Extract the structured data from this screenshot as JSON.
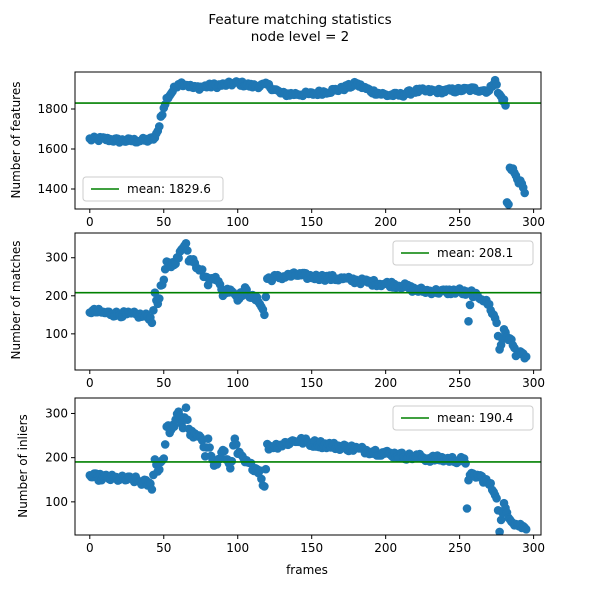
{
  "figure": {
    "title_line1": "Feature matching statistics",
    "title_line2": "node level = 2",
    "xlabel": "frames"
  },
  "colors": {
    "points": "#1f77b4",
    "mean_line": "#008000"
  },
  "chart_data": [
    {
      "type": "scatter",
      "ylabel": "Number of features",
      "xlim": [
        -10,
        305
      ],
      "ylim": [
        1300,
        1985
      ],
      "xticks": [
        0,
        50,
        100,
        150,
        200,
        250,
        300
      ],
      "yticks": [
        1400,
        1600,
        1800
      ],
      "mean": 1829.6,
      "legend": {
        "label": "mean: 1829.6",
        "position": "lower-left"
      },
      "anchors": [
        [
          0,
          1648
        ],
        [
          10,
          1650
        ],
        [
          20,
          1642
        ],
        [
          30,
          1642
        ],
        [
          40,
          1645
        ],
        [
          44,
          1655
        ],
        [
          46,
          1685
        ],
        [
          48,
          1760
        ],
        [
          50,
          1800
        ],
        [
          52,
          1850
        ],
        [
          55,
          1880
        ],
        [
          60,
          1930
        ],
        [
          65,
          1925
        ],
        [
          70,
          1905
        ],
        [
          80,
          1915
        ],
        [
          90,
          1920
        ],
        [
          100,
          1930
        ],
        [
          110,
          1915
        ],
        [
          120,
          1920
        ],
        [
          130,
          1875
        ],
        [
          150,
          1875
        ],
        [
          170,
          1900
        ],
        [
          180,
          1925
        ],
        [
          190,
          1890
        ],
        [
          200,
          1870
        ],
        [
          210,
          1870
        ],
        [
          220,
          1890
        ],
        [
          240,
          1890
        ],
        [
          260,
          1900
        ],
        [
          270,
          1890
        ],
        [
          274,
          1950
        ],
        [
          276,
          1880
        ],
        [
          280,
          1840
        ],
        [
          281,
          1820
        ],
        [
          282,
          1330
        ],
        [
          283,
          1320
        ],
        [
          284,
          1510
        ],
        [
          286,
          1500
        ],
        [
          288,
          1460
        ],
        [
          292,
          1420
        ],
        [
          294,
          1380
        ]
      ],
      "x": [],
      "y": []
    },
    {
      "type": "scatter",
      "ylabel": "Number of matches",
      "xlim": [
        -10,
        305
      ],
      "ylim": [
        5,
        365
      ],
      "xticks": [
        0,
        50,
        100,
        150,
        200,
        250,
        300
      ],
      "yticks": [
        100,
        200,
        300
      ],
      "mean": 208.1,
      "legend": {
        "label": "mean: 208.1",
        "position": "upper-right"
      },
      "anchors": [
        [
          0,
          160
        ],
        [
          10,
          155
        ],
        [
          20,
          152
        ],
        [
          30,
          150
        ],
        [
          40,
          145
        ],
        [
          42,
          135
        ],
        [
          44,
          200
        ],
        [
          46,
          180
        ],
        [
          48,
          220
        ],
        [
          50,
          240
        ],
        [
          52,
          285
        ],
        [
          55,
          280
        ],
        [
          60,
          300
        ],
        [
          63,
          330
        ],
        [
          65,
          345
        ],
        [
          67,
          290
        ],
        [
          70,
          300
        ],
        [
          72,
          280
        ],
        [
          75,
          270
        ],
        [
          78,
          250
        ],
        [
          80,
          235
        ],
        [
          85,
          255
        ],
        [
          90,
          205
        ],
        [
          95,
          220
        ],
        [
          100,
          195
        ],
        [
          105,
          215
        ],
        [
          110,
          195
        ],
        [
          115,
          185
        ],
        [
          118,
          150
        ],
        [
          120,
          245
        ],
        [
          130,
          250
        ],
        [
          140,
          255
        ],
        [
          150,
          250
        ],
        [
          170,
          245
        ],
        [
          190,
          235
        ],
        [
          210,
          228
        ],
        [
          220,
          215
        ],
        [
          240,
          210
        ],
        [
          250,
          213
        ],
        [
          255,
          205
        ],
        [
          256,
          130
        ],
        [
          258,
          210
        ],
        [
          260,
          200
        ],
        [
          265,
          195
        ],
        [
          270,
          175
        ],
        [
          275,
          130
        ],
        [
          277,
          60
        ],
        [
          280,
          105
        ],
        [
          285,
          80
        ],
        [
          288,
          50
        ],
        [
          292,
          45
        ],
        [
          295,
          40
        ]
      ],
      "x": [],
      "y": []
    },
    {
      "type": "scatter",
      "ylabel": "Number of inliers",
      "xlim": [
        -10,
        305
      ],
      "ylim": [
        25,
        335
      ],
      "xticks": [
        0,
        50,
        100,
        150,
        200,
        250,
        300
      ],
      "yticks": [
        100,
        200,
        300
      ],
      "mean": 190.4,
      "legend": {
        "label": "mean: 190.4",
        "position": "upper-right"
      },
      "anchors": [
        [
          0,
          157
        ],
        [
          10,
          155
        ],
        [
          20,
          152
        ],
        [
          30,
          150
        ],
        [
          40,
          140
        ],
        [
          42,
          135
        ],
        [
          44,
          195
        ],
        [
          46,
          170
        ],
        [
          48,
          190
        ],
        [
          50,
          200
        ],
        [
          52,
          270
        ],
        [
          55,
          260
        ],
        [
          60,
          300
        ],
        [
          63,
          270
        ],
        [
          65,
          315
        ],
        [
          67,
          260
        ],
        [
          70,
          250
        ],
        [
          75,
          245
        ],
        [
          78,
          205
        ],
        [
          80,
          250
        ],
        [
          83,
          190
        ],
        [
          85,
          180
        ],
        [
          90,
          215
        ],
        [
          95,
          180
        ],
        [
          98,
          240
        ],
        [
          100,
          210
        ],
        [
          105,
          190
        ],
        [
          110,
          180
        ],
        [
          115,
          170
        ],
        [
          118,
          130
        ],
        [
          120,
          225
        ],
        [
          130,
          230
        ],
        [
          140,
          240
        ],
        [
          150,
          233
        ],
        [
          170,
          225
        ],
        [
          190,
          215
        ],
        [
          200,
          210
        ],
        [
          210,
          205
        ],
        [
          230,
          198
        ],
        [
          250,
          195
        ],
        [
          254,
          190
        ],
        [
          255,
          90
        ],
        [
          256,
          155
        ],
        [
          260,
          160
        ],
        [
          265,
          155
        ],
        [
          270,
          140
        ],
        [
          275,
          115
        ],
        [
          277,
          38
        ],
        [
          280,
          90
        ],
        [
          285,
          60
        ],
        [
          288,
          50
        ],
        [
          292,
          45
        ],
        [
          295,
          38
        ]
      ],
      "x": [],
      "y": []
    }
  ]
}
